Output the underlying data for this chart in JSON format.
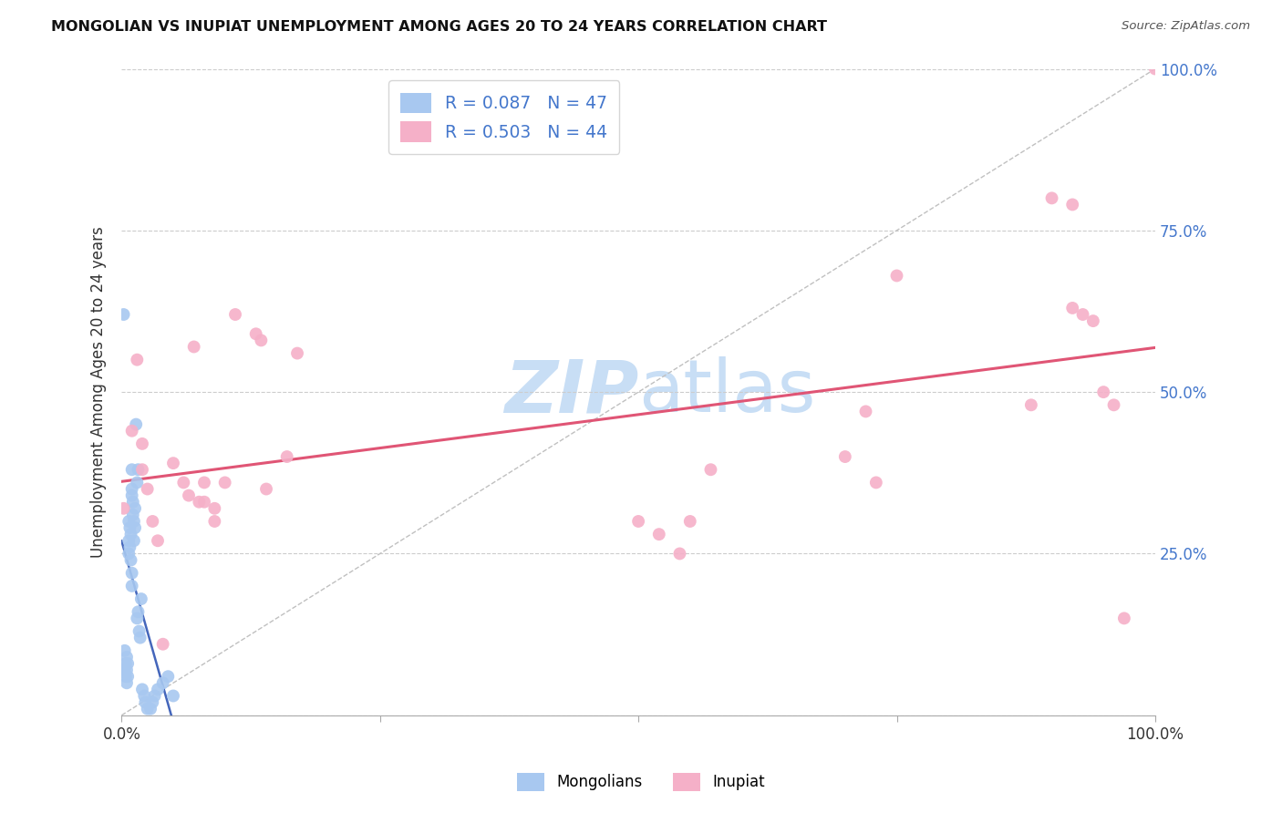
{
  "title": "MONGOLIAN VS INUPIAT UNEMPLOYMENT AMONG AGES 20 TO 24 YEARS CORRELATION CHART",
  "source": "Source: ZipAtlas.com",
  "ylabel": "Unemployment Among Ages 20 to 24 years",
  "xlim": [
    0,
    1
  ],
  "ylim": [
    0,
    1
  ],
  "mongolian_R": 0.087,
  "mongolian_N": 47,
  "inupiat_R": 0.503,
  "inupiat_N": 44,
  "mongolian_color": "#a8c8f0",
  "inupiat_color": "#f5b0c8",
  "mongolian_line_color": "#4466bb",
  "inupiat_line_color": "#e05575",
  "diagonal_color": "#c0c0c0",
  "background_color": "#ffffff",
  "watermark_zip": "ZIP",
  "watermark_atlas": "atlas",
  "watermark_color_zip": "#c8def5",
  "watermark_color_atlas": "#c8def5",
  "right_tick_color": "#4477cc",
  "grid_color": "#cccccc",
  "mongolian_points_x": [
    0.002,
    0.003,
    0.003,
    0.004,
    0.004,
    0.005,
    0.005,
    0.005,
    0.006,
    0.006,
    0.007,
    0.007,
    0.007,
    0.008,
    0.008,
    0.009,
    0.009,
    0.01,
    0.01,
    0.01,
    0.01,
    0.01,
    0.011,
    0.011,
    0.012,
    0.012,
    0.013,
    0.013,
    0.014,
    0.015,
    0.015,
    0.016,
    0.016,
    0.017,
    0.018,
    0.019,
    0.02,
    0.022,
    0.023,
    0.025,
    0.028,
    0.03,
    0.032,
    0.035,
    0.04,
    0.045,
    0.05
  ],
  "mongolian_points_y": [
    0.62,
    0.1,
    0.07,
    0.08,
    0.06,
    0.09,
    0.07,
    0.05,
    0.08,
    0.06,
    0.3,
    0.27,
    0.25,
    0.29,
    0.26,
    0.28,
    0.24,
    0.38,
    0.35,
    0.34,
    0.22,
    0.2,
    0.33,
    0.31,
    0.3,
    0.27,
    0.32,
    0.29,
    0.45,
    0.36,
    0.15,
    0.38,
    0.16,
    0.13,
    0.12,
    0.18,
    0.04,
    0.03,
    0.02,
    0.01,
    0.01,
    0.02,
    0.03,
    0.04,
    0.05,
    0.06,
    0.03
  ],
  "inupiat_points_x": [
    0.002,
    0.01,
    0.015,
    0.02,
    0.02,
    0.025,
    0.03,
    0.035,
    0.04,
    0.05,
    0.06,
    0.065,
    0.07,
    0.075,
    0.08,
    0.08,
    0.09,
    0.09,
    0.1,
    0.11,
    0.13,
    0.135,
    0.14,
    0.16,
    0.17,
    0.5,
    0.52,
    0.54,
    0.55,
    0.57,
    0.7,
    0.72,
    0.73,
    0.75,
    0.88,
    0.9,
    0.92,
    0.92,
    0.93,
    0.94,
    0.95,
    0.96,
    0.97,
    1.0
  ],
  "inupiat_points_y": [
    0.32,
    0.44,
    0.55,
    0.42,
    0.38,
    0.35,
    0.3,
    0.27,
    0.11,
    0.39,
    0.36,
    0.34,
    0.57,
    0.33,
    0.36,
    0.33,
    0.32,
    0.3,
    0.36,
    0.62,
    0.59,
    0.58,
    0.35,
    0.4,
    0.56,
    0.3,
    0.28,
    0.25,
    0.3,
    0.38,
    0.4,
    0.47,
    0.36,
    0.68,
    0.48,
    0.8,
    0.79,
    0.63,
    0.62,
    0.61,
    0.5,
    0.48,
    0.15,
    1.0
  ]
}
